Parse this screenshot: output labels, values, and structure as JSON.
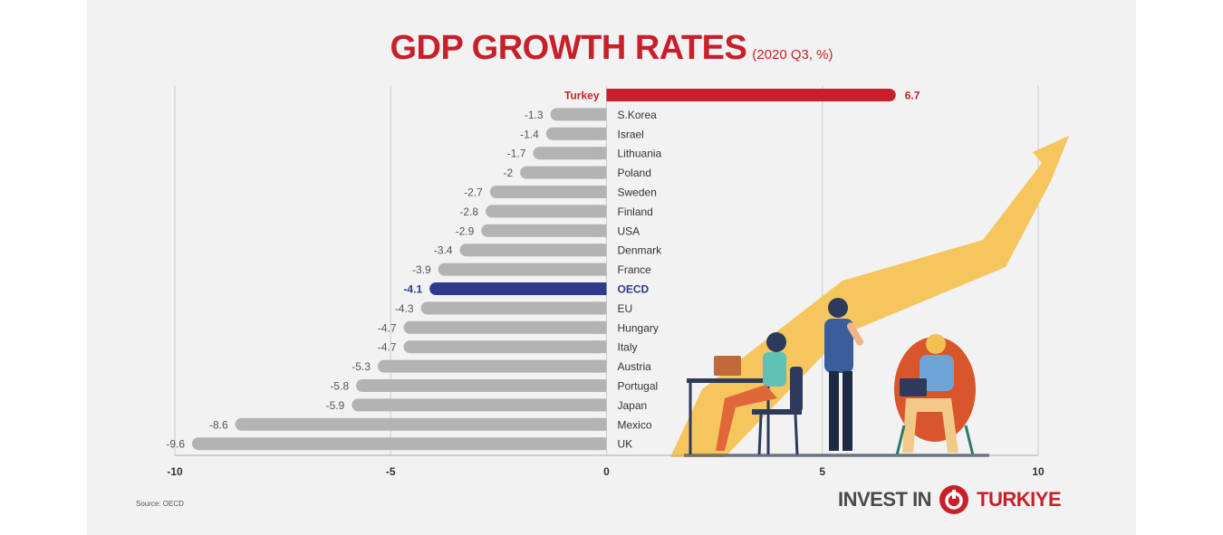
{
  "title": "GDP GROWTH RATES",
  "subtitle": "(2020 Q3, %)",
  "source": "Source: OECD",
  "logo": {
    "left": "INVEST IN",
    "right": "TURKIYE",
    "mark_icon": "power-circle-icon"
  },
  "colors": {
    "highlight": "#c8202b",
    "oecd": "#2e3a8c",
    "bar": "#b3b3b3",
    "label": "#555555",
    "arrow": "#f5c65e",
    "grid": "#cccccc"
  },
  "chart_data": {
    "type": "bar",
    "orientation": "horizontal",
    "categories": [
      "Turkey",
      "S.Korea",
      "Israel",
      "Lithuania",
      "Poland",
      "Sweden",
      "Finland",
      "USA",
      "Denmark",
      "France",
      "OECD",
      "EU",
      "Hungary",
      "Italy",
      "Austria",
      "Portugal",
      "Japan",
      "Mexico",
      "UK"
    ],
    "values": [
      6.7,
      -1.3,
      -1.4,
      -1.7,
      -2,
      -2.7,
      -2.8,
      -2.9,
      -3.4,
      -3.9,
      -4.1,
      -4.3,
      -4.7,
      -4.7,
      -5.3,
      -5.8,
      -5.9,
      -8.6,
      -9.6
    ],
    "value_labels": [
      "6.7",
      "-1.3",
      "-1.4",
      "-1.7",
      "-2",
      "-2.7",
      "-2.8",
      "-2.9",
      "-3.4",
      "-3.9",
      "-4.1",
      "-4.3",
      "-4.7",
      "-4.7",
      "-5.3",
      "-5.8",
      "-5.9",
      "-8.6",
      "-9.6"
    ],
    "highlight": {
      "Turkey": "highlight",
      "OECD": "oecd"
    },
    "xlim": [
      -10,
      10
    ],
    "xticks": [
      "-10",
      "-5",
      "0",
      "5",
      "10"
    ],
    "grid": true,
    "title": "GDP GROWTH RATES",
    "subtitle": "(2020 Q3, %)"
  }
}
